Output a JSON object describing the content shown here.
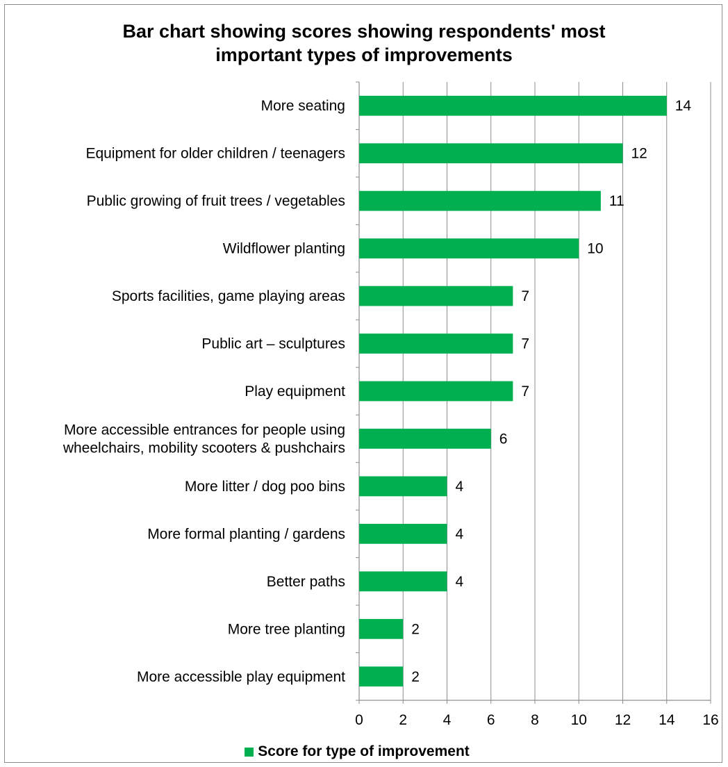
{
  "chart_data": {
    "type": "bar",
    "orientation": "horizontal",
    "title_lines": [
      "Bar chart showing scores showing respondents' most",
      "important types of improvements"
    ],
    "categories": [
      [
        "More seating"
      ],
      [
        "Equipment for older children / teenagers"
      ],
      [
        "Public growing of fruit trees / vegetables"
      ],
      [
        "Wildflower planting"
      ],
      [
        "Sports facilities, game playing areas"
      ],
      [
        "Public art – sculptures"
      ],
      [
        "Play equipment"
      ],
      [
        "More accessible entrances for people using",
        "wheelchairs, mobility scooters & pushchairs"
      ],
      [
        "More litter / dog poo bins"
      ],
      [
        "More formal planting / gardens"
      ],
      [
        "Better paths"
      ],
      [
        "More tree planting"
      ],
      [
        "More accessible play equipment"
      ]
    ],
    "series": [
      {
        "name": "Score for type of improvement",
        "color": "#00b050",
        "values": [
          14,
          12,
          11,
          10,
          7,
          7,
          7,
          6,
          4,
          4,
          4,
          2,
          2
        ]
      }
    ],
    "xlim": [
      0,
      16
    ],
    "xticks": [
      0,
      2,
      4,
      6,
      8,
      10,
      12,
      14,
      16
    ],
    "grid": "vertical",
    "legend_position": "bottom",
    "data_labels": true
  }
}
